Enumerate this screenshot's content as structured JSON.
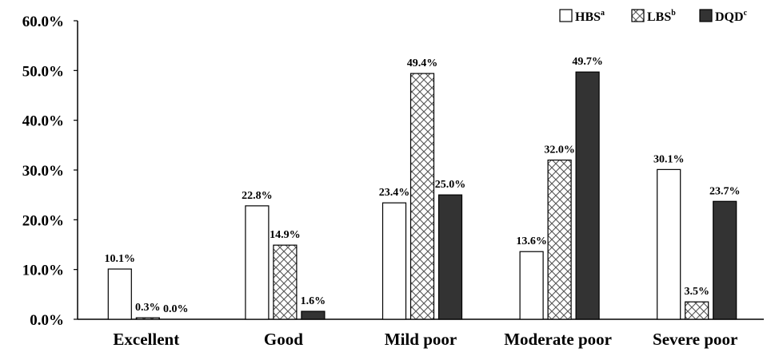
{
  "chart_data": {
    "type": "bar",
    "categories": [
      "Excellent",
      "Good",
      "Mild poor",
      "Moderate poor",
      "Severe poor"
    ],
    "series": [
      {
        "name": "HBS",
        "sup": "a",
        "values": [
          10.1,
          22.8,
          23.4,
          13.6,
          30.1
        ],
        "labels": [
          "10.1%",
          "22.8%",
          "23.4%",
          "13.6%",
          "30.1%"
        ],
        "fill": "white",
        "color": "#ffffff"
      },
      {
        "name": "LBS",
        "sup": "b",
        "values": [
          0.3,
          14.9,
          49.4,
          32.0,
          3.5
        ],
        "labels": [
          "0.3%",
          "14.9%",
          "49.4%",
          "32.0%",
          "3.5%"
        ],
        "fill": "crosshatch",
        "color": "#ffffff"
      },
      {
        "name": "DQD",
        "sup": "c",
        "values": [
          0.0,
          1.6,
          25.0,
          49.7,
          23.7
        ],
        "labels": [
          "0.0%",
          "1.6%",
          "25.0%",
          "49.7%",
          "23.7%"
        ],
        "fill": "solid",
        "color": "#333333"
      }
    ],
    "y_ticks": [
      "0.0%",
      "10.0%",
      "20.0%",
      "30.0%",
      "40.0%",
      "50.0%",
      "60.0%"
    ],
    "ylim": [
      0,
      60
    ],
    "title": "",
    "xlabel": "",
    "ylabel": "",
    "grid": false,
    "legend_position": "top-right"
  }
}
